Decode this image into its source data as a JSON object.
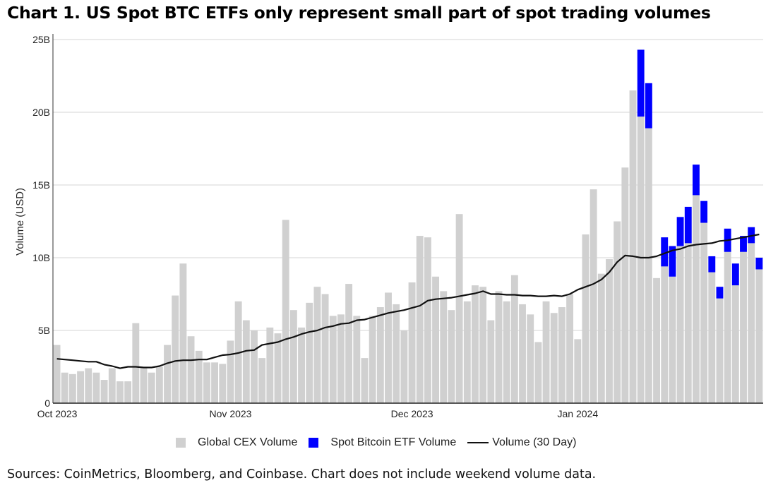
{
  "title": "Chart 1. US Spot BTC ETFs only represent small part of spot trading volumes",
  "source": "Sources: CoinMetrics, Bloomberg, and Coinbase. Chart does not include weekend volume data.",
  "colors": {
    "cex": "#d0d0d0",
    "etf": "#0000ff",
    "line": "#111111",
    "grid": "#e3e3e3"
  },
  "chart_data": {
    "type": "bar",
    "stacked": true,
    "title": "Chart 1. US Spot BTC ETFs only represent small part of spot trading volumes",
    "xlabel": "",
    "ylabel": "Volume (USD)",
    "ylim": [
      0,
      25
    ],
    "yunit": "B",
    "yticks": [
      0,
      5,
      10,
      15,
      20,
      25
    ],
    "ytick_labels": [
      "0",
      "5B",
      "10B",
      "15B",
      "20B",
      "25B"
    ],
    "x_tick_labels": [
      {
        "index": 0,
        "label": "Oct 2023"
      },
      {
        "index": 22,
        "label": "Nov 2023"
      },
      {
        "index": 45,
        "label": "Dec 2023"
      },
      {
        "index": 66,
        "label": "Jan 2024"
      }
    ],
    "grid": true,
    "legend_position": "bottom",
    "series": [
      {
        "name": "Global CEX Volume",
        "type": "bar",
        "values": [
          4.0,
          2.1,
          2.0,
          2.2,
          2.4,
          2.1,
          1.6,
          2.4,
          1.5,
          1.5,
          5.5,
          2.5,
          2.1,
          2.5,
          4.0,
          7.4,
          9.6,
          4.6,
          3.6,
          2.8,
          2.8,
          2.7,
          4.3,
          7.0,
          5.7,
          5.0,
          3.1,
          5.2,
          4.8,
          12.6,
          6.4,
          5.2,
          6.9,
          8.0,
          7.5,
          6.0,
          6.1,
          8.2,
          6.0,
          3.1,
          6.0,
          6.6,
          7.6,
          6.8,
          5.0,
          8.3,
          11.5,
          11.4,
          8.7,
          7.7,
          6.4,
          13.0,
          7.0,
          8.1,
          8.0,
          5.7,
          7.7,
          7.0,
          8.8,
          6.8,
          6.1,
          4.2,
          7.0,
          6.2,
          6.6,
          7.5,
          4.4,
          11.6,
          14.7,
          8.9,
          9.9,
          12.5,
          16.2,
          21.5,
          19.7,
          18.9,
          8.6,
          9.4,
          8.7,
          10.8,
          11.0,
          14.3,
          12.4,
          9.0,
          7.2,
          10.4,
          8.1,
          10.4,
          11.0,
          9.2
        ]
      },
      {
        "name": "Spot Bitcoin ETF Volume",
        "type": "bar",
        "values": [
          0,
          0,
          0,
          0,
          0,
          0,
          0,
          0,
          0,
          0,
          0,
          0,
          0,
          0,
          0,
          0,
          0,
          0,
          0,
          0,
          0,
          0,
          0,
          0,
          0,
          0,
          0,
          0,
          0,
          0,
          0,
          0,
          0,
          0,
          0,
          0,
          0,
          0,
          0,
          0,
          0,
          0,
          0,
          0,
          0,
          0,
          0,
          0,
          0,
          0,
          0,
          0,
          0,
          0,
          0,
          0,
          0,
          0,
          0,
          0,
          0,
          0,
          0,
          0,
          0,
          0,
          0,
          0,
          0,
          0,
          0,
          0,
          0,
          0,
          4.6,
          3.1,
          0,
          2.0,
          2.1,
          2.0,
          2.5,
          2.1,
          1.5,
          1.1,
          0.8,
          1.6,
          1.5,
          1.1,
          1.1,
          0.8
        ]
      },
      {
        "name": "Volume (30 Day)",
        "type": "line",
        "values": [
          3.05,
          3.0,
          2.95,
          2.9,
          2.85,
          2.85,
          2.65,
          2.55,
          2.4,
          2.5,
          2.5,
          2.45,
          2.45,
          2.55,
          2.75,
          2.9,
          2.95,
          2.95,
          3.0,
          3.0,
          3.15,
          3.3,
          3.35,
          3.45,
          3.6,
          3.65,
          4.0,
          4.1,
          4.2,
          4.4,
          4.55,
          4.75,
          4.9,
          5.0,
          5.2,
          5.3,
          5.45,
          5.5,
          5.7,
          5.75,
          5.9,
          6.05,
          6.2,
          6.3,
          6.4,
          6.55,
          6.7,
          7.05,
          7.15,
          7.2,
          7.25,
          7.35,
          7.45,
          7.55,
          7.7,
          7.5,
          7.5,
          7.45,
          7.45,
          7.4,
          7.4,
          7.35,
          7.35,
          7.4,
          7.35,
          7.5,
          7.8,
          8.0,
          8.2,
          8.5,
          9.0,
          9.7,
          10.15,
          10.1,
          10.0,
          10.0,
          10.1,
          10.3,
          10.5,
          10.6,
          10.8,
          10.9,
          10.95,
          11.0,
          11.15,
          11.2,
          11.3,
          11.4,
          11.5,
          11.6
        ]
      }
    ]
  },
  "legend": {
    "items": [
      {
        "label": "Global CEX Volume",
        "kind": "square"
      },
      {
        "label": "Spot Bitcoin ETF Volume",
        "kind": "square"
      },
      {
        "label": "Volume (30 Day)",
        "kind": "line"
      }
    ]
  }
}
